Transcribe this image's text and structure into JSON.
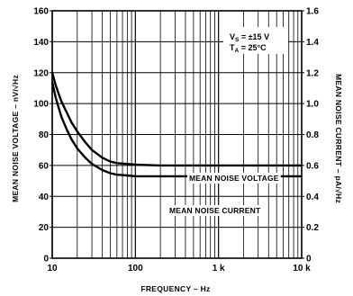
{
  "chart_data": {
    "type": "line",
    "title": "",
    "xlabel": "FREQUENCY – Hz",
    "ylabel": "MEAN NOISE VOLTAGE – nV/√Hz",
    "y2label": "MEAN NOISE CURRENT – pA/√Hz",
    "x_scale": "log",
    "xlim": [
      10,
      10000
    ],
    "ylim": [
      0,
      160
    ],
    "y2lim": [
      0,
      1.6
    ],
    "grid": true,
    "x_ticks": [
      10,
      100,
      1000,
      10000
    ],
    "x_tick_labels": [
      "10",
      "100",
      "1 k",
      "10 k"
    ],
    "y_ticks": [
      0,
      20,
      40,
      60,
      80,
      100,
      120,
      140,
      160
    ],
    "y_tick_labels": [
      "0",
      "20",
      "40",
      "60",
      "80",
      "100",
      "120",
      "140",
      "160"
    ],
    "y2_ticks": [
      0,
      0.2,
      0.4,
      0.6,
      0.8,
      1.0,
      1.2,
      1.4,
      1.6
    ],
    "y2_tick_labels": [
      "0",
      "0.2",
      "0.4",
      "0.6",
      "0.8",
      "1.0",
      "1.2",
      "1.4",
      "1.6"
    ],
    "annotations": [
      "VS = ±15 V",
      "TA = 25°C"
    ],
    "series": [
      {
        "name": "MEAN NOISE VOLTAGE",
        "axis": "left",
        "x": [
          10,
          11,
          12,
          13,
          15,
          17,
          20,
          25,
          30,
          40,
          50,
          60,
          80,
          100,
          200,
          500,
          1000,
          10000
        ],
        "y": [
          120,
          112,
          106,
          101,
          94,
          88,
          82,
          75,
          70,
          65,
          62.5,
          61.5,
          61,
          60.5,
          60,
          60,
          60,
          60
        ]
      },
      {
        "name": "MEAN NOISE CURRENT",
        "axis": "right",
        "x": [
          10,
          11,
          12,
          13,
          15,
          17,
          20,
          25,
          30,
          40,
          50,
          60,
          80,
          100,
          200,
          500,
          1000,
          10000
        ],
        "y": [
          1.14,
          1.04,
          0.97,
          0.91,
          0.83,
          0.77,
          0.71,
          0.65,
          0.61,
          0.57,
          0.55,
          0.54,
          0.535,
          0.53,
          0.53,
          0.53,
          0.53,
          0.53
        ]
      }
    ]
  }
}
